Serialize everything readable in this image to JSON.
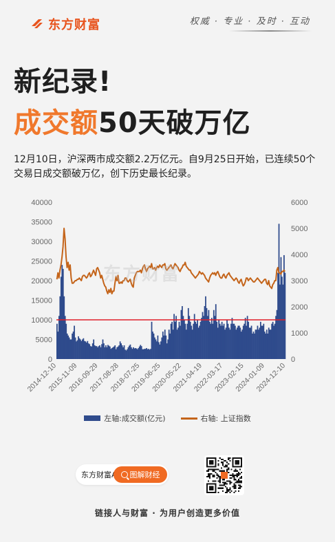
{
  "brand": {
    "name": "东方财富"
  },
  "slogan": "权威 · 专业 · 及时 · 互动",
  "headline": {
    "line1": "新纪录!",
    "line2_highlight": "成交额",
    "line2_rest": "50天破万亿"
  },
  "description": "12月10日，沪深两市成交额2.2万亿元。自9月25日开始，已连续50个交易日成交额破万亿，创下历史最长纪录。",
  "watermark": "东方财富",
  "chart_data": {
    "type": "bar",
    "colors": {
      "bars": "#2f4b8c",
      "line": "#c4641a",
      "threshold": "#e0202a",
      "axis_text": "#666"
    },
    "x_ticks": [
      "2014-12-10",
      "2015-11-09",
      "2016-09-29",
      "2017-08-28",
      "2018-07-25",
      "2019-06-25",
      "2020-05-22",
      "2021-04-19",
      "2022-03-17",
      "2023-02-15",
      "2024-01-09",
      "2024-12-10"
    ],
    "left_axis": {
      "range": [
        0,
        40000
      ],
      "ticks": [
        0,
        5000,
        10000,
        15000,
        20000,
        25000,
        30000,
        35000,
        40000
      ]
    },
    "right_axis": {
      "range": [
        0,
        6000
      ],
      "ticks": [
        0,
        1000,
        2000,
        3000,
        4000,
        5000,
        6000
      ]
    },
    "threshold": 10000,
    "series": [
      {
        "name": "左轴:成交额(亿元)",
        "axis": "left",
        "type": "bar",
        "values": [
          9000,
          7000,
          11000,
          16000,
          21000,
          24000,
          23000,
          16000,
          11000,
          9000,
          6500,
          6000,
          5500,
          5000,
          5000,
          6500,
          7000,
          8500,
          5500,
          4500,
          4800,
          5800,
          5300,
          5000,
          4600,
          5000,
          5300,
          4600,
          4500,
          4200,
          4600,
          4000,
          3800,
          3300,
          3200,
          4000,
          5000,
          3500,
          3300,
          3300,
          3000,
          3300,
          3500,
          3000,
          3800,
          5000,
          4000,
          3000,
          3500,
          3000,
          3600,
          3400,
          3200,
          2600,
          2800,
          3000,
          3200,
          3500,
          2500,
          3000,
          3200,
          3500,
          4500,
          4000,
          3500,
          3000,
          3500,
          2400,
          2200,
          2500,
          3000,
          3400,
          3700,
          3000,
          2600,
          3000,
          2700,
          2800,
          2700,
          2500,
          2800,
          3200,
          3600,
          3300,
          2500,
          2500,
          2600,
          2600,
          2800,
          2500,
          2600,
          2400,
          2600,
          9500,
          7000,
          6500,
          5500,
          5000,
          4500,
          6000,
          4300,
          3700,
          4500,
          5500,
          7000,
          6000,
          7500,
          6000,
          4000,
          5000,
          7500,
          6500,
          9000,
          9500,
          7500,
          11500,
          9500,
          11000,
          7500,
          8000,
          9500,
          8500,
          12500,
          13500,
          11000,
          10000,
          9000,
          7500,
          9000,
          13000,
          11000,
          9500,
          8500,
          7500,
          9000,
          11500,
          9500,
          9000,
          10000,
          8000,
          8500,
          9500,
          10500,
          12000,
          11000,
          13500,
          16000,
          13000,
          11000,
          12500,
          9500,
          9000,
          10500,
          9000,
          12500,
          11000,
          14000,
          9500,
          8000,
          10000,
          9000,
          8500,
          9500,
          8500,
          9000,
          7500,
          8000,
          10000,
          9000,
          8000,
          7500,
          9000,
          10500,
          9000,
          9000,
          8500,
          7500,
          8000,
          8500,
          8500,
          8000,
          7000,
          7500,
          8500,
          9000,
          10500,
          8500,
          11000,
          9500,
          8000,
          8000,
          8500,
          6500,
          7000,
          6500,
          7500,
          7500,
          8500,
          7500,
          8000,
          9500,
          8500,
          8500,
          9000,
          7000,
          6500,
          7500,
          6500,
          8000,
          7500,
          7500,
          9000,
          9500,
          8500,
          9000,
          11000,
          12500,
          22000,
          34500,
          19000,
          26000,
          21000,
          19000,
          26500,
          22000
        ]
      },
      {
        "name": "右轴: 上证指数",
        "axis": "right",
        "type": "line",
        "values": [
          3050,
          3300,
          3100,
          3400,
          3600,
          3900,
          4300,
          5000,
          4600,
          3900,
          3500,
          3700,
          3400,
          3600,
          3100,
          2900,
          2900,
          2950,
          3000,
          3000,
          3050,
          3050,
          3100,
          3050,
          3000,
          3150,
          3200,
          3200,
          3150,
          3100,
          3150,
          3250,
          3300,
          3150,
          3200,
          3300,
          3400,
          3300,
          3200,
          3450,
          3500,
          3400,
          3300,
          3100,
          3200,
          3050,
          2900,
          2800,
          2750,
          2600,
          2500,
          2650,
          2550,
          2700,
          2500,
          2600,
          2600,
          2900,
          3150,
          3000,
          3200,
          2900,
          2900,
          2950,
          2900,
          3000,
          3000,
          3100,
          3100,
          3000,
          2950,
          3000,
          3050,
          2900,
          2800,
          2750,
          3100,
          3200,
          3300,
          3350,
          3350,
          3350,
          3400,
          3300,
          3450,
          3550,
          3600,
          3450,
          3350,
          3450,
          3500,
          3550,
          3500,
          3650,
          3450,
          3450,
          3500,
          3400,
          3500,
          3550,
          3500,
          3600,
          3550,
          3500,
          3600,
          3600,
          3650,
          3450,
          3400,
          3450,
          3500,
          3550,
          3600,
          3500,
          3450,
          3550,
          3650,
          3600,
          3550,
          3500,
          3400,
          3350,
          3450,
          3500,
          3600,
          3600,
          3700,
          3550,
          3500,
          3450,
          3400,
          3400,
          3300,
          3250,
          3200,
          3150,
          3100,
          3150,
          3200,
          3250,
          3350,
          3300,
          3250,
          3300,
          3250,
          3200,
          3100,
          3050,
          3000,
          2950,
          3100,
          3200,
          3250,
          3300,
          3250,
          3300,
          3200,
          3300,
          3350,
          3250,
          3150,
          3100,
          3100,
          3200,
          3250,
          3150,
          3100,
          3200,
          3250,
          3300,
          3200,
          3150,
          3100,
          3050,
          3000,
          3050,
          3100,
          3050,
          2950,
          2900,
          3000,
          3050,
          2900,
          2800,
          2850,
          2950,
          3100,
          3100,
          3000,
          3050,
          3100,
          3050,
          3000,
          2950,
          2950,
          3000,
          3050,
          3100,
          3050,
          3000,
          2950,
          2900,
          2950,
          3000,
          3050,
          3050,
          2900,
          2850,
          3000,
          2800,
          2750,
          2700,
          2850,
          2900,
          3000,
          3000,
          3400,
          3500,
          3300,
          3300,
          3250,
          3350,
          3350,
          3400,
          3350
        ]
      }
    ],
    "legend": [
      "左轴:成交额(亿元)",
      "右轴: 上证指数"
    ],
    "legend_position": "bottom",
    "grid": false
  },
  "promo": {
    "app_label": "东方财富APP",
    "button_label": "图解财经"
  },
  "footer": "链接人与财富 · 为用户创造更多价值"
}
